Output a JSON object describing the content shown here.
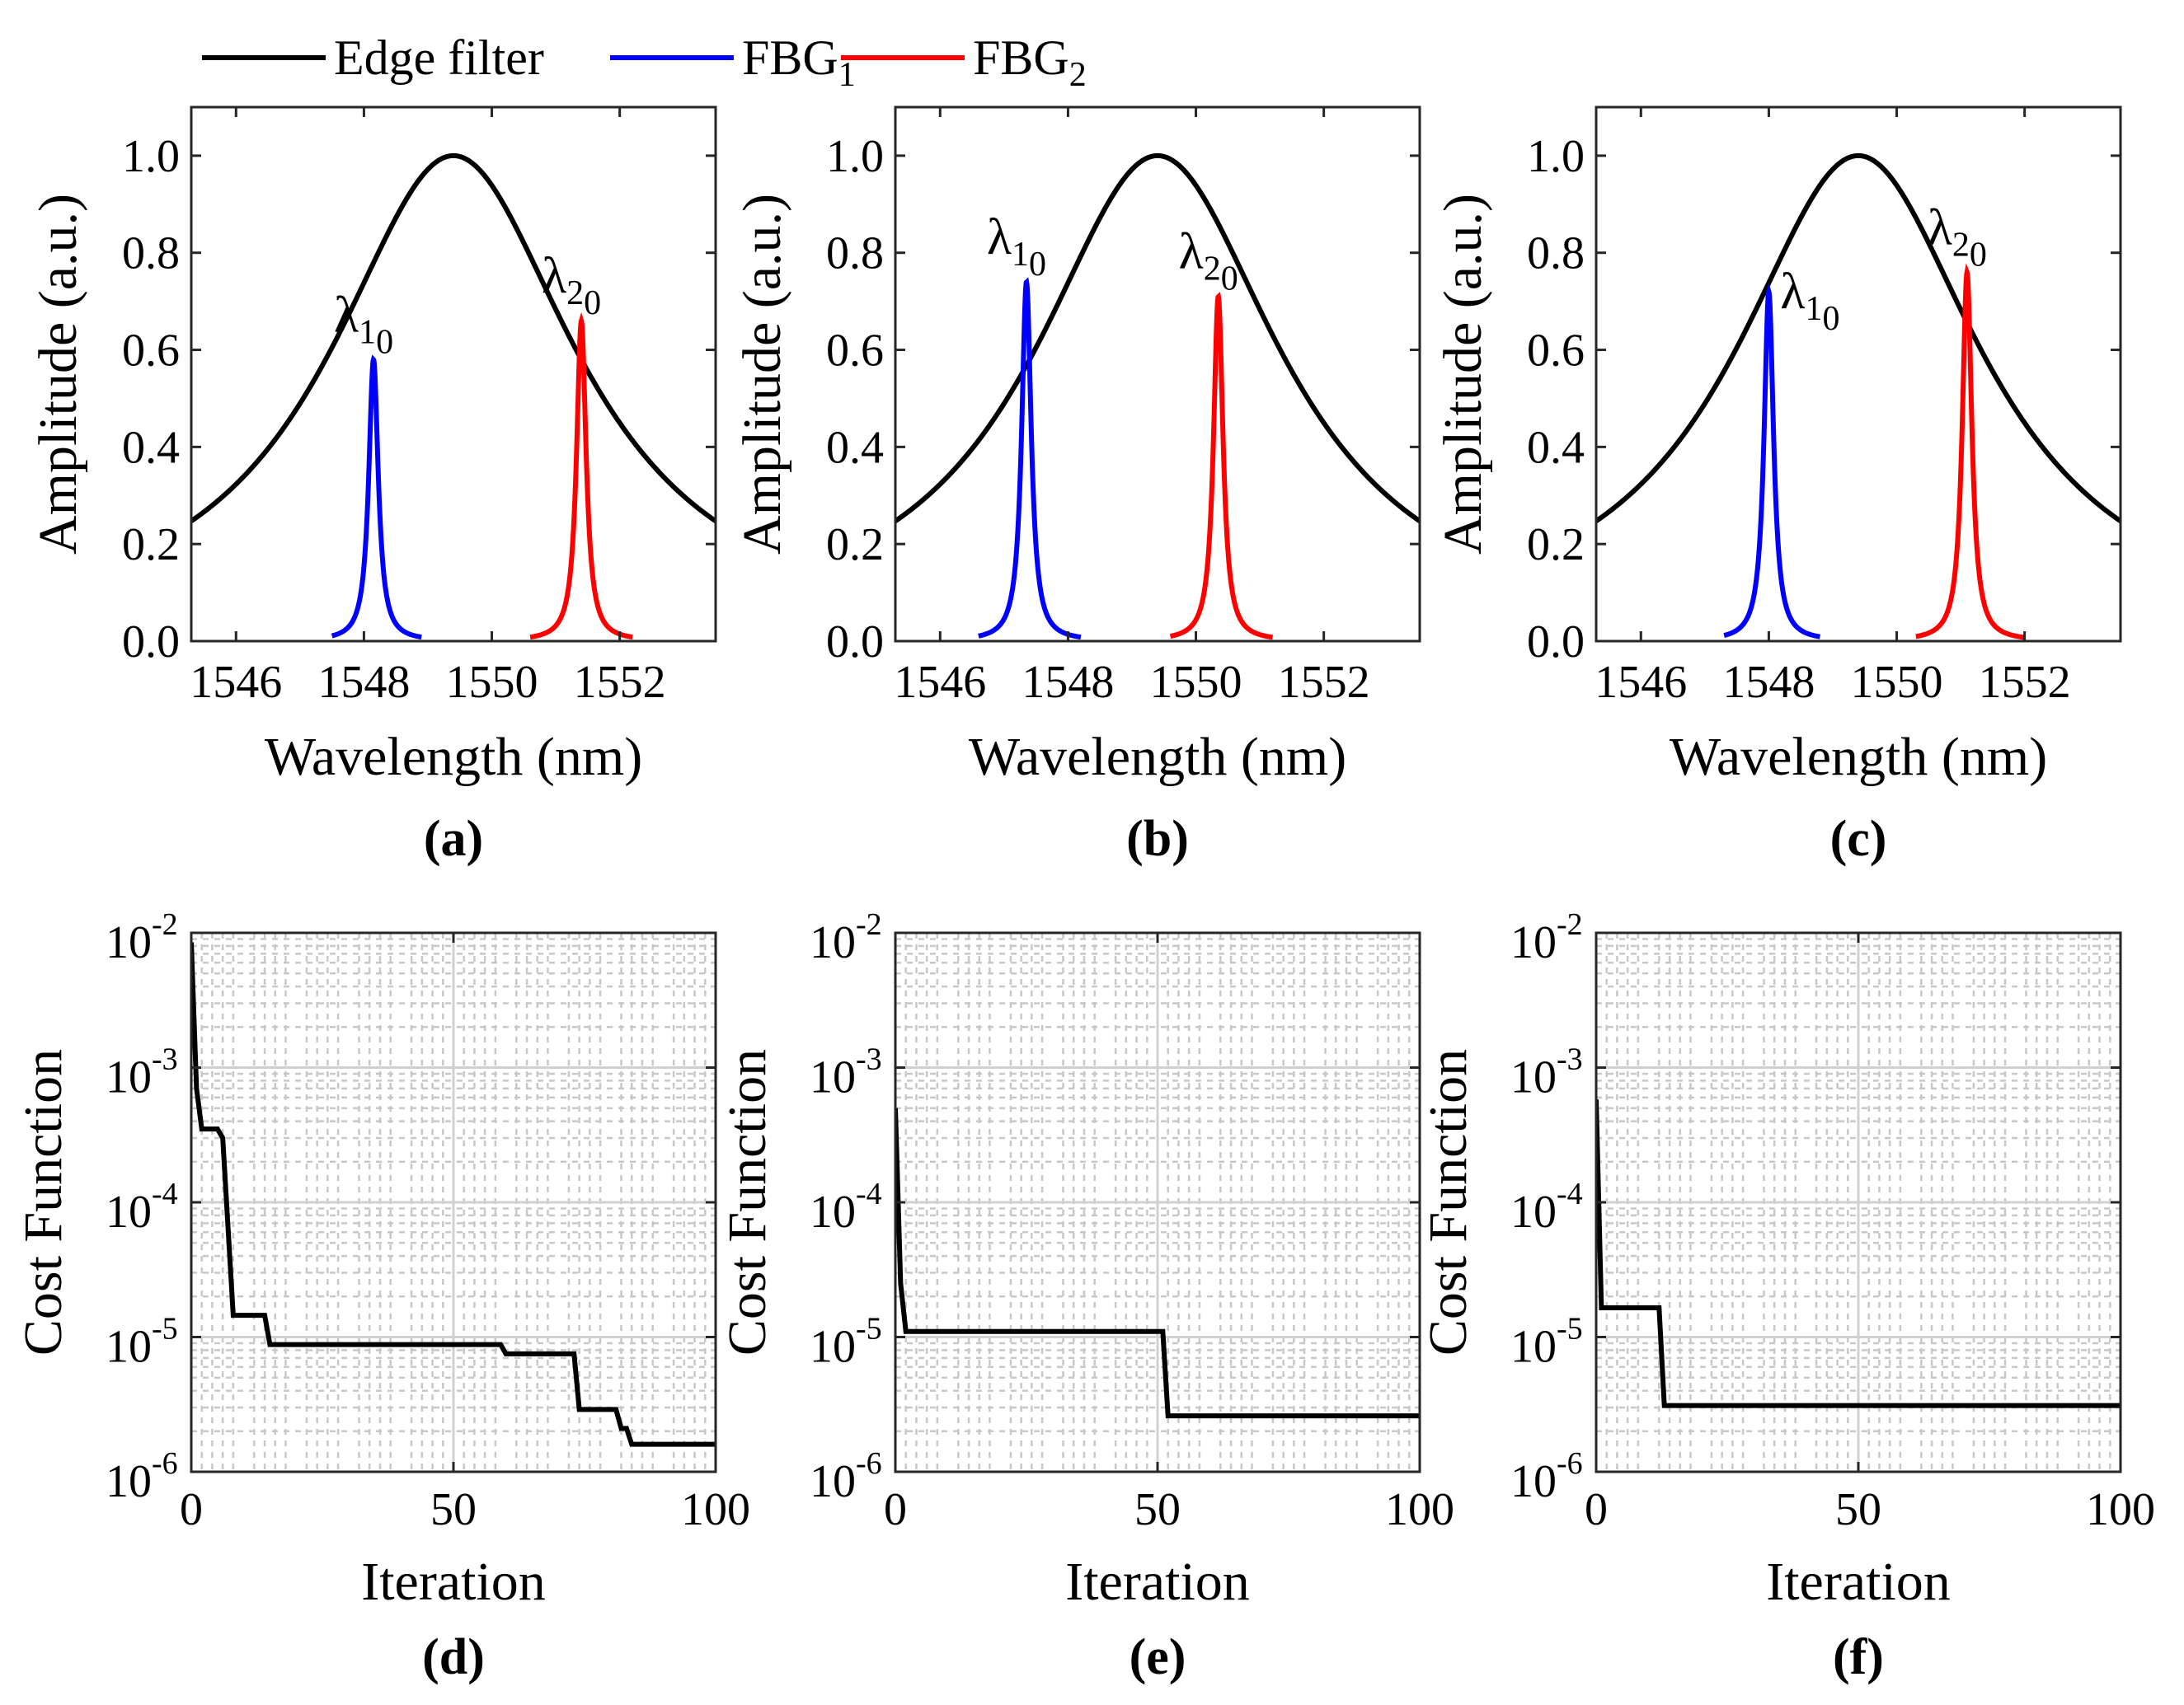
{
  "legend": {
    "position": "top-left",
    "items": [
      {
        "label": "Edge filter",
        "sub": "",
        "color": "#000000"
      },
      {
        "label": "FBG",
        "sub": "1",
        "color": "#0000ff"
      },
      {
        "label": "FBG",
        "sub": "2",
        "color": "#ff0000"
      }
    ]
  },
  "colors": {
    "edge": "#000000",
    "fbg1": "#0000ff",
    "fbg2": "#ff0000",
    "grid": "#d0d0d0"
  },
  "chart_data": [
    {
      "type": "line",
      "panel": "a",
      "caption": "(a)",
      "xlabel": "Wavelength (nm)",
      "ylabel": "Amplitude (a.u.)",
      "xlim": [
        1545.3,
        1553.5
      ],
      "ylim": [
        0,
        1.1
      ],
      "xticks": [
        1546,
        1548,
        1550,
        1552
      ],
      "yticks": [
        0.0,
        0.2,
        0.4,
        0.6,
        0.8,
        1.0
      ],
      "ytick_labels": [
        "0.0",
        "0.2",
        "0.4",
        "0.6",
        "0.8",
        "1.0"
      ],
      "edge_filter": {
        "center": 1549.4,
        "peak": 1.0,
        "hwhm": 2.35
      },
      "series": [
        {
          "name": "FBG1",
          "center": 1548.15,
          "peak": 0.58,
          "hwhm": 0.09,
          "span": [
            1547.5,
            1548.9
          ],
          "label": "λ",
          "label_sub": "1",
          "label_subsub": "0"
        },
        {
          "name": "FBG2",
          "center": 1551.4,
          "peak": 0.66,
          "hwhm": 0.09,
          "span": [
            1550.6,
            1552.2
          ],
          "label": "λ",
          "label_sub": "2",
          "label_subsub": "0"
        }
      ]
    },
    {
      "type": "line",
      "panel": "b",
      "caption": "(b)",
      "xlabel": "Wavelength (nm)",
      "ylabel": "Amplitude (a.u.)",
      "xlim": [
        1545.3,
        1553.5
      ],
      "ylim": [
        0,
        1.1
      ],
      "xticks": [
        1546,
        1548,
        1550,
        1552
      ],
      "yticks": [
        0.0,
        0.2,
        0.4,
        0.6,
        0.8,
        1.0
      ],
      "ytick_labels": [
        "0.0",
        "0.2",
        "0.4",
        "0.6",
        "0.8",
        "1.0"
      ],
      "edge_filter": {
        "center": 1549.4,
        "peak": 1.0,
        "hwhm": 2.35
      },
      "series": [
        {
          "name": "FBG1",
          "center": 1547.35,
          "peak": 0.74,
          "hwhm": 0.09,
          "span": [
            1546.6,
            1548.2
          ],
          "label": "λ",
          "label_sub": "1",
          "label_subsub": "0"
        },
        {
          "name": "FBG2",
          "center": 1550.35,
          "peak": 0.71,
          "hwhm": 0.09,
          "span": [
            1549.6,
            1551.2
          ],
          "label": "λ",
          "label_sub": "2",
          "label_subsub": "0"
        }
      ]
    },
    {
      "type": "line",
      "panel": "c",
      "caption": "(c)",
      "xlabel": "Wavelength (nm)",
      "ylabel": "Amplitude (a.u.)",
      "xlim": [
        1545.3,
        1553.5
      ],
      "ylim": [
        0,
        1.1
      ],
      "xticks": [
        1546,
        1548,
        1550,
        1552
      ],
      "yticks": [
        0.0,
        0.2,
        0.4,
        0.6,
        0.8,
        1.0
      ],
      "ytick_labels": [
        "0.0",
        "0.2",
        "0.4",
        "0.6",
        "0.8",
        "1.0"
      ],
      "edge_filter": {
        "center": 1549.4,
        "peak": 1.0,
        "hwhm": 2.35
      },
      "series": [
        {
          "name": "FBG1",
          "center": 1548.0,
          "peak": 0.72,
          "hwhm": 0.09,
          "span": [
            1547.3,
            1548.8
          ],
          "label": "λ",
          "label_sub": "1",
          "label_subsub": "0"
        },
        {
          "name": "FBG2",
          "center": 1551.1,
          "peak": 0.76,
          "hwhm": 0.09,
          "span": [
            1550.3,
            1552.0
          ],
          "label": "λ",
          "label_sub": "2",
          "label_subsub": "0"
        }
      ]
    },
    {
      "type": "line",
      "panel": "d",
      "caption": "(d)",
      "yscale": "log",
      "xlabel": "Iteration",
      "ylabel": "Cost Function",
      "xlim": [
        0,
        100
      ],
      "ylim": [
        1e-06,
        0.01
      ],
      "xticks": [
        0,
        50,
        100
      ],
      "yticks": [
        1e-06,
        1e-05,
        0.0001,
        0.001,
        0.01
      ],
      "ytick_labels": [
        {
          "base": "10",
          "exp": "-6"
        },
        {
          "base": "10",
          "exp": "-5"
        },
        {
          "base": "10",
          "exp": "-4"
        },
        {
          "base": "10",
          "exp": "-3"
        },
        {
          "base": "10",
          "exp": "-2"
        }
      ],
      "series": [
        {
          "name": "cost",
          "x": [
            0,
            1,
            2,
            3,
            5,
            6,
            8,
            9,
            14,
            15,
            59,
            60,
            73,
            74,
            81,
            82,
            83,
            84,
            100
          ],
          "y": [
            0.0085,
            0.0007,
            0.00035,
            0.00035,
            0.00035,
            0.0003,
            1.45e-05,
            1.45e-05,
            1.45e-05,
            8.8e-06,
            8.8e-06,
            7.5e-06,
            7.5e-06,
            2.9e-06,
            2.9e-06,
            2.1e-06,
            2.1e-06,
            1.6e-06,
            1.6e-06
          ]
        }
      ]
    },
    {
      "type": "line",
      "panel": "e",
      "caption": "(e)",
      "yscale": "log",
      "xlabel": "Iteration",
      "ylabel": "Cost Function",
      "xlim": [
        0,
        100
      ],
      "ylim": [
        1e-06,
        0.01
      ],
      "xticks": [
        0,
        50,
        100
      ],
      "yticks": [
        1e-06,
        1e-05,
        0.0001,
        0.001,
        0.01
      ],
      "ytick_labels": [
        {
          "base": "10",
          "exp": "-6"
        },
        {
          "base": "10",
          "exp": "-5"
        },
        {
          "base": "10",
          "exp": "-4"
        },
        {
          "base": "10",
          "exp": "-3"
        },
        {
          "base": "10",
          "exp": "-2"
        }
      ],
      "series": [
        {
          "name": "cost",
          "x": [
            0,
            1,
            2,
            51,
            52,
            100
          ],
          "y": [
            0.0005,
            2.5e-05,
            1.1e-05,
            1.1e-05,
            2.6e-06,
            2.6e-06
          ]
        }
      ]
    },
    {
      "type": "line",
      "panel": "f",
      "caption": "(f)",
      "yscale": "log",
      "xlabel": "Iteration",
      "ylabel": "Cost Function",
      "xlim": [
        0,
        100
      ],
      "ylim": [
        1e-06,
        0.01
      ],
      "xticks": [
        0,
        50,
        100
      ],
      "yticks": [
        1e-06,
        1e-05,
        0.0001,
        0.001,
        0.01
      ],
      "ytick_labels": [
        {
          "base": "10",
          "exp": "-6"
        },
        {
          "base": "10",
          "exp": "-5"
        },
        {
          "base": "10",
          "exp": "-4"
        },
        {
          "base": "10",
          "exp": "-3"
        },
        {
          "base": "10",
          "exp": "-2"
        }
      ],
      "series": [
        {
          "name": "cost",
          "x": [
            0,
            1,
            12,
            13,
            100
          ],
          "y": [
            0.00058,
            1.65e-05,
            1.65e-05,
            3.1e-06,
            3.1e-06
          ]
        }
      ]
    }
  ]
}
